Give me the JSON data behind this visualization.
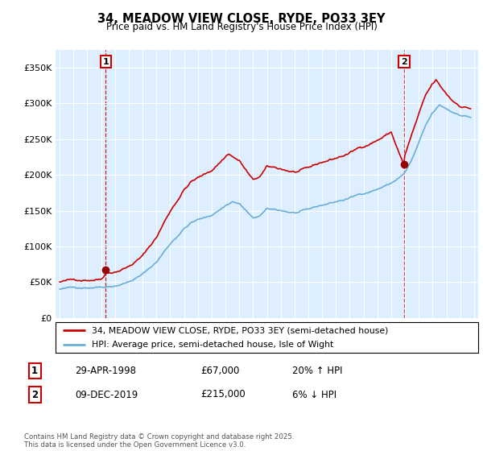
{
  "title": "34, MEADOW VIEW CLOSE, RYDE, PO33 3EY",
  "subtitle": "Price paid vs. HM Land Registry's House Price Index (HPI)",
  "legend_line1": "34, MEADOW VIEW CLOSE, RYDE, PO33 3EY (semi-detached house)",
  "legend_line2": "HPI: Average price, semi-detached house, Isle of Wight",
  "footnote": "Contains HM Land Registry data © Crown copyright and database right 2025.\nThis data is licensed under the Open Government Licence v3.0.",
  "sale1_label": "1",
  "sale1_date": "29-APR-1998",
  "sale1_price": "£67,000",
  "sale1_hpi": "20% ↑ HPI",
  "sale2_label": "2",
  "sale2_date": "09-DEC-2019",
  "sale2_price": "£215,000",
  "sale2_hpi": "6% ↓ HPI",
  "hpi_color": "#6aaed6",
  "sale_color": "#cc0000",
  "marker_color": "#990000",
  "vline_color": "#cc0000",
  "bg_color": "#ddeeff",
  "ylim": [
    0,
    375000
  ],
  "yticks": [
    0,
    50000,
    100000,
    150000,
    200000,
    250000,
    300000,
    350000
  ],
  "ytick_labels": [
    "£0",
    "£50K",
    "£100K",
    "£150K",
    "£200K",
    "£250K",
    "£300K",
    "£350K"
  ],
  "sale1_x": 1998.33,
  "sale1_y": 67000,
  "sale2_x": 2019.94,
  "sale2_y": 215000,
  "xlim": [
    1994.7,
    2025.3
  ]
}
